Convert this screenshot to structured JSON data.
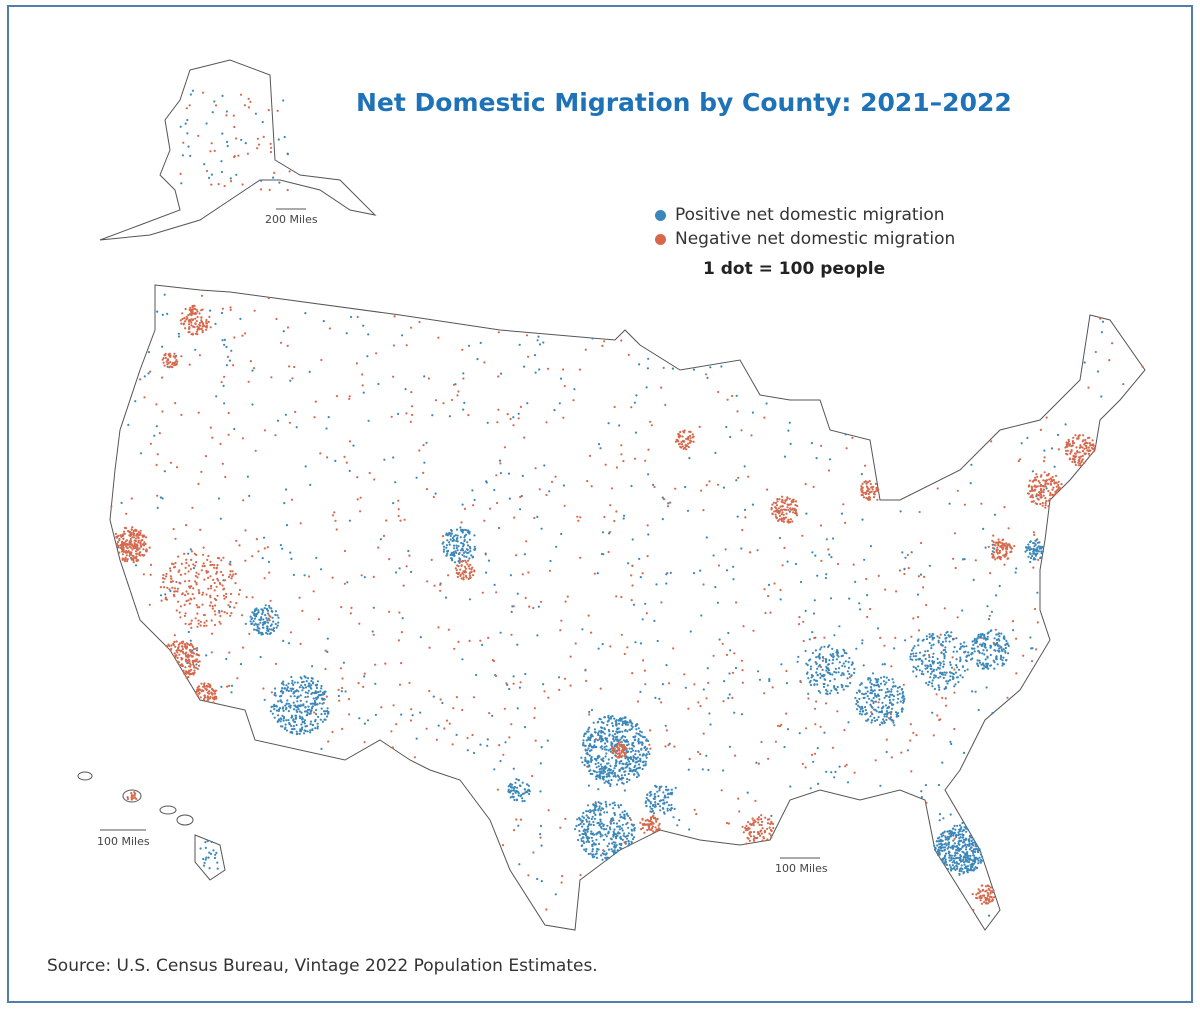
{
  "title": "Net Domestic Migration by County: 2021–2022",
  "legend": {
    "items": [
      {
        "label": "Positive net domestic migration",
        "color": "#3b87b9"
      },
      {
        "label": "Negative net domestic migration",
        "color": "#d6684c"
      }
    ],
    "dot_value": "1 dot = 100 people"
  },
  "scale_bars": {
    "alaska": "200 Miles",
    "hawaii": "100 Miles",
    "conus": "100 Miles"
  },
  "source": "Source: U.S. Census Bureau, Vintage 2022 Population Estimates."
}
